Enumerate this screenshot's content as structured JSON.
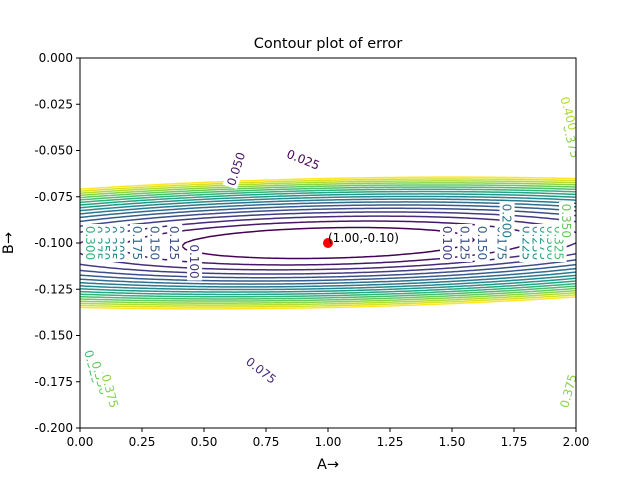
{
  "chart_data": {
    "type": "contour",
    "title": "Contour plot of error",
    "xlabel": "A→",
    "ylabel": "B→",
    "xlim": [
      0.0,
      2.0
    ],
    "ylim": [
      -0.2,
      0.0
    ],
    "xticks": [
      "0.00",
      "0.25",
      "0.50",
      "0.75",
      "1.00",
      "1.25",
      "1.50",
      "1.75",
      "2.00"
    ],
    "yticks": [
      "0.000",
      "-0.025",
      "-0.050",
      "-0.075",
      "-0.100",
      "-0.125",
      "-0.150",
      "-0.175",
      "-0.200"
    ],
    "function": {
      "center_a": 1.0,
      "center_b": -0.1,
      "a_scale": 0.365,
      "b_scale": 0.0052,
      "tilt": -0.4
    },
    "levels": [
      0.025,
      0.05,
      0.075,
      0.1,
      0.125,
      0.15,
      0.175,
      0.2,
      0.225,
      0.25,
      0.275,
      0.3,
      0.325,
      0.35,
      0.375,
      0.4,
      0.425,
      0.45
    ],
    "labeled_levels": [
      {
        "text": "0.025",
        "a": 0.9,
        "b": -0.055,
        "angle": 22
      },
      {
        "text": "0.050",
        "a": 0.63,
        "b": -0.06,
        "angle": -72
      },
      {
        "text": "0.075",
        "a": 0.73,
        "b": -0.169,
        "angle": 38
      },
      {
        "text": "0.100",
        "a": 0.46,
        "b": -0.11,
        "angle": 90
      },
      {
        "text": "0.125",
        "a": 0.38,
        "b": -0.1,
        "angle": 90
      },
      {
        "text": "0.150",
        "a": 0.3,
        "b": -0.1,
        "angle": 90
      },
      {
        "text": "0.175",
        "a": 0.23,
        "b": -0.1,
        "angle": 90
      },
      {
        "text": "0.200",
        "a": 0.16,
        "b": -0.1,
        "angle": 90
      },
      {
        "text": "0.225",
        "a": 0.13,
        "b": -0.1,
        "angle": 90
      },
      {
        "text": "0.250",
        "a": 0.1,
        "b": -0.1,
        "angle": 90
      },
      {
        "text": "0.275",
        "a": 0.07,
        "b": -0.1,
        "angle": 90
      },
      {
        "text": "0.300",
        "a": 0.04,
        "b": -0.1,
        "angle": 90
      },
      {
        "text": "0.325",
        "a": 0.05,
        "b": -0.167,
        "angle": 75
      },
      {
        "text": "0.350",
        "a": 0.08,
        "b": -0.173,
        "angle": 75
      },
      {
        "text": "0.375",
        "a": 0.12,
        "b": -0.18,
        "angle": 75
      },
      {
        "text": "0.100",
        "a": 1.48,
        "b": -0.1,
        "angle": 90
      },
      {
        "text": "0.125",
        "a": 1.55,
        "b": -0.1,
        "angle": 90
      },
      {
        "text": "0.150",
        "a": 1.62,
        "b": -0.1,
        "angle": 90
      },
      {
        "text": "0.175",
        "a": 1.7,
        "b": -0.1,
        "angle": 90
      },
      {
        "text": "0.200",
        "a": 1.72,
        "b": -0.088,
        "angle": 90
      },
      {
        "text": "0.225",
        "a": 1.8,
        "b": -0.1,
        "angle": 90
      },
      {
        "text": "0.250",
        "a": 1.84,
        "b": -0.1,
        "angle": 90
      },
      {
        "text": "0.275",
        "a": 1.87,
        "b": -0.1,
        "angle": 90
      },
      {
        "text": "0.300",
        "a": 1.9,
        "b": -0.1,
        "angle": 90
      },
      {
        "text": "0.325",
        "a": 1.93,
        "b": -0.1,
        "angle": 90
      },
      {
        "text": "0.350",
        "a": 1.96,
        "b": -0.088,
        "angle": 90
      },
      {
        "text": "0.375",
        "a": 1.98,
        "b": -0.045,
        "angle": 75
      },
      {
        "text": "0.400",
        "a": 1.97,
        "b": -0.03,
        "angle": 75
      },
      {
        "text": "0.375",
        "a": 1.97,
        "b": -0.18,
        "angle": -75
      }
    ],
    "point": {
      "a": 1.0,
      "b": -0.1,
      "label": "(1.00,-0.10)",
      "color": "#ff0000"
    },
    "colormap": "viridis"
  }
}
